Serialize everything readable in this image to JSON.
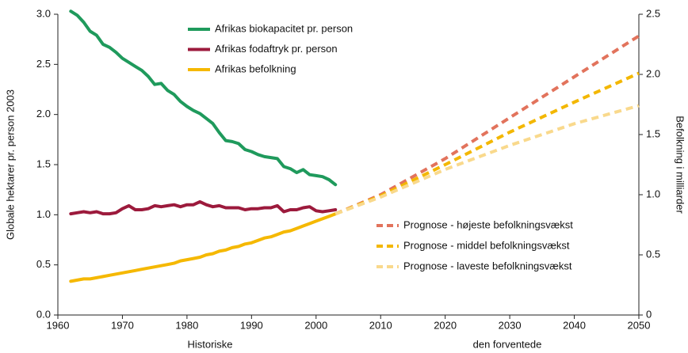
{
  "chart_data": {
    "type": "line",
    "ylabel": "Globale hektarer pr. person 2003",
    "y2label": "Befolkning i milliarder",
    "xlabels": [
      "Historiske",
      "den forventede"
    ],
    "xlim": [
      1960,
      2050
    ],
    "xticks": [
      1960,
      1970,
      1980,
      1990,
      2000,
      2010,
      2020,
      2030,
      2040,
      2050
    ],
    "ylim": [
      0,
      3.0
    ],
    "yticks": [
      {
        "value": 0,
        "label": "0.0"
      },
      0.5,
      {
        "value": 1,
        "label": "1.0"
      },
      1.5,
      {
        "value": 2,
        "label": "2.0"
      },
      2.5,
      {
        "value": 3,
        "label": "3.0"
      }
    ],
    "y2lim": [
      0,
      2.5
    ],
    "y2ticks": [
      0,
      0.5,
      {
        "value": 1,
        "label": "1.0"
      },
      1.5,
      {
        "value": 2,
        "label": "2.0"
      },
      2.5
    ],
    "grid": false,
    "series": [
      {
        "name": "Afrikas biokapacitet pr. person",
        "color": "#1f9a5c",
        "dashed": false,
        "legend": "upper",
        "x": [
          1962,
          1963,
          1964,
          1965,
          1966,
          1967,
          1968,
          1969,
          1970,
          1971,
          1972,
          1973,
          1974,
          1975,
          1976,
          1977,
          1978,
          1979,
          1980,
          1981,
          1982,
          1983,
          1984,
          1985,
          1986,
          1987,
          1988,
          1989,
          1990,
          1991,
          1992,
          1993,
          1994,
          1995,
          1996,
          1997,
          1998,
          1999,
          2000,
          2001,
          2002,
          2003
        ],
        "values": [
          3.03,
          2.99,
          2.92,
          2.83,
          2.79,
          2.7,
          2.67,
          2.62,
          2.56,
          2.52,
          2.48,
          2.44,
          2.38,
          2.3,
          2.31,
          2.24,
          2.2,
          2.13,
          2.08,
          2.04,
          2.01,
          1.96,
          1.91,
          1.82,
          1.74,
          1.73,
          1.71,
          1.65,
          1.63,
          1.6,
          1.58,
          1.57,
          1.56,
          1.48,
          1.46,
          1.42,
          1.45,
          1.4,
          1.39,
          1.38,
          1.35,
          1.3
        ]
      },
      {
        "name": "Afrikas fodaftryk pr. person",
        "color": "#9c1a3c",
        "dashed": false,
        "legend": "upper",
        "x": [
          1962,
          1963,
          1964,
          1965,
          1966,
          1967,
          1968,
          1969,
          1970,
          1971,
          1972,
          1973,
          1974,
          1975,
          1976,
          1977,
          1978,
          1979,
          1980,
          1981,
          1982,
          1983,
          1984,
          1985,
          1986,
          1987,
          1988,
          1989,
          1990,
          1991,
          1992,
          1993,
          1994,
          1995,
          1996,
          1997,
          1998,
          1999,
          2000,
          2001,
          2002,
          2003
        ],
        "values": [
          1.01,
          1.02,
          1.03,
          1.02,
          1.03,
          1.01,
          1.01,
          1.02,
          1.06,
          1.09,
          1.05,
          1.05,
          1.06,
          1.09,
          1.08,
          1.09,
          1.1,
          1.08,
          1.1,
          1.1,
          1.13,
          1.1,
          1.08,
          1.09,
          1.07,
          1.07,
          1.07,
          1.05,
          1.06,
          1.06,
          1.07,
          1.07,
          1.09,
          1.03,
          1.05,
          1.05,
          1.07,
          1.08,
          1.04,
          1.03,
          1.04,
          1.05
        ]
      },
      {
        "name": "Afrikas befolkning",
        "color": "#f5b800",
        "dashed": false,
        "legend": "upper",
        "axis": "y2",
        "x": [
          1962,
          1963,
          1964,
          1965,
          1966,
          1967,
          1968,
          1969,
          1970,
          1971,
          1972,
          1973,
          1974,
          1975,
          1976,
          1977,
          1978,
          1979,
          1980,
          1981,
          1982,
          1983,
          1984,
          1985,
          1986,
          1987,
          1988,
          1989,
          1990,
          1991,
          1992,
          1993,
          1994,
          1995,
          1996,
          1997,
          1998,
          1999,
          2000,
          2001,
          2002,
          2003
        ],
        "values": [
          0.28,
          0.29,
          0.3,
          0.3,
          0.31,
          0.32,
          0.33,
          0.34,
          0.35,
          0.36,
          0.37,
          0.38,
          0.39,
          0.4,
          0.41,
          0.42,
          0.43,
          0.45,
          0.46,
          0.47,
          0.48,
          0.5,
          0.51,
          0.53,
          0.54,
          0.56,
          0.57,
          0.59,
          0.6,
          0.62,
          0.64,
          0.65,
          0.67,
          0.69,
          0.7,
          0.72,
          0.74,
          0.76,
          0.78,
          0.8,
          0.82,
          0.84
        ]
      },
      {
        "name": "Prognose - højeste befolkningsvækst",
        "color": "#e2735c",
        "dashed": true,
        "legend": "lower",
        "axis": "y2",
        "x": [
          2003,
          2010,
          2020,
          2030,
          2040,
          2050
        ],
        "values": [
          0.84,
          1.0,
          1.3,
          1.64,
          1.98,
          2.32
        ]
      },
      {
        "name": "Prognose - middel befolkningsvækst",
        "color": "#f3b700",
        "dashed": true,
        "legend": "lower",
        "axis": "y2",
        "x": [
          2003,
          2010,
          2020,
          2030,
          2040,
          2050
        ],
        "values": [
          0.84,
          0.99,
          1.25,
          1.52,
          1.77,
          2.01
        ]
      },
      {
        "name": "Prognose - laveste befolkningsvækst",
        "color": "#f9d98c",
        "dashed": true,
        "legend": "lower",
        "axis": "y2",
        "x": [
          2003,
          2010,
          2020,
          2030,
          2040,
          2050
        ],
        "values": [
          0.84,
          0.98,
          1.21,
          1.41,
          1.59,
          1.74
        ]
      }
    ]
  }
}
